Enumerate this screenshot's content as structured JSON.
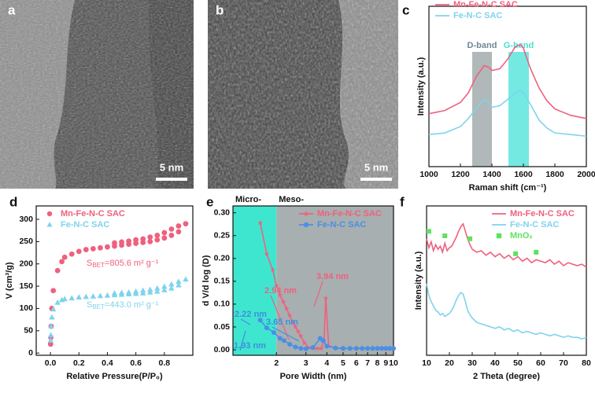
{
  "panels": [
    {
      "label": "a",
      "scale_bar": "5 nm"
    },
    {
      "label": "b",
      "scale_bar": "5 nm"
    }
  ],
  "chart_data": [
    {
      "type": "line",
      "label": "c",
      "xlabel": "Raman shift (cm⁻¹)",
      "ylabel": "Intensity (a.u.)",
      "xlim": [
        1000,
        2000
      ],
      "xticks": [
        1000,
        1200,
        1400,
        1600,
        1800,
        2000
      ],
      "ylim": [
        0,
        1
      ],
      "legend": "upper left",
      "bands": [
        {
          "label": "D-band",
          "range": [
            1275,
            1400
          ],
          "color": "#a3acad",
          "text_color": "#6f8797"
        },
        {
          "label": "G-band",
          "range": [
            1505,
            1635
          ],
          "color": "#5ce5dd",
          "text_color": "#48e0cf"
        }
      ],
      "series": [
        {
          "name": "Mn-Fe-N-C SAC",
          "color": "#f0607e",
          "marker": "none",
          "x": [
            1000,
            1100,
            1200,
            1250,
            1300,
            1350,
            1380,
            1400,
            1450,
            1500,
            1550,
            1580,
            1600,
            1620,
            1650,
            1700,
            1750,
            1800,
            1900,
            2000
          ],
          "values": [
            0.33,
            0.35,
            0.4,
            0.46,
            0.56,
            0.63,
            0.62,
            0.6,
            0.61,
            0.67,
            0.75,
            0.76,
            0.74,
            0.68,
            0.6,
            0.49,
            0.41,
            0.36,
            0.32,
            0.3
          ]
        },
        {
          "name": "Fe-N-C SAC",
          "color": "#7fd3ec",
          "marker": "none",
          "x": [
            1000,
            1100,
            1200,
            1250,
            1300,
            1350,
            1380,
            1400,
            1450,
            1500,
            1550,
            1580,
            1600,
            1650,
            1700,
            1750,
            1800,
            1900,
            2000
          ],
          "values": [
            0.2,
            0.21,
            0.25,
            0.3,
            0.36,
            0.42,
            0.4,
            0.37,
            0.38,
            0.42,
            0.46,
            0.48,
            0.46,
            0.38,
            0.29,
            0.24,
            0.21,
            0.2,
            0.19
          ]
        }
      ]
    },
    {
      "type": "scatter",
      "label": "d",
      "xlabel": "Relative Pressure(P/P₀)",
      "ylabel": "V (cm³/g)",
      "xlim": [
        -0.1,
        1.0
      ],
      "xticks": [
        {
          "value": 0,
          "label": "0.0"
        },
        {
          "value": 0.2,
          "label": "0.2"
        },
        {
          "value": 0.4,
          "label": "0.4"
        },
        {
          "value": 0.6,
          "label": "0.6"
        },
        {
          "value": 0.8,
          "label": "0.8"
        }
      ],
      "ylim": [
        -5,
        330
      ],
      "yticks": [
        0,
        50,
        100,
        150,
        200,
        250,
        300
      ],
      "legend": "upper left",
      "annotations": [
        {
          "main": "S",
          "sub": "BET",
          "rest": "=805.6 m² g⁻¹",
          "color": "#f0607e"
        },
        {
          "main": "S",
          "sub": "BET",
          "rest": "=443.0 m² g⁻¹",
          "color": "#7fd3ec"
        }
      ],
      "series": [
        {
          "name": "Mn-Fe-N-C SAC",
          "color": "#f0607e",
          "marker": "circle",
          "x": [
            0.001,
            0.003,
            0.005,
            0.01,
            0.02,
            0.05,
            0.08,
            0.1,
            0.15,
            0.2,
            0.25,
            0.3,
            0.35,
            0.4,
            0.45,
            0.5,
            0.55,
            0.6,
            0.65,
            0.7,
            0.75,
            0.8,
            0.85,
            0.9,
            0.95,
            0.9,
            0.85,
            0.8,
            0.75,
            0.7,
            0.65,
            0.6,
            0.55,
            0.5,
            0.45
          ],
          "values": [
            20,
            35,
            60,
            100,
            140,
            185,
            205,
            215,
            222,
            228,
            232,
            234,
            236,
            238,
            240,
            242,
            244,
            246,
            248,
            250,
            254,
            258,
            264,
            272,
            290,
            285,
            278,
            270,
            264,
            260,
            256,
            254,
            251,
            249,
            247
          ]
        },
        {
          "name": "Fe-N-C SAC",
          "color": "#7fd3ec",
          "marker": "triangle",
          "x": [
            0.001,
            0.003,
            0.005,
            0.01,
            0.02,
            0.05,
            0.08,
            0.1,
            0.15,
            0.2,
            0.25,
            0.3,
            0.35,
            0.4,
            0.45,
            0.5,
            0.55,
            0.6,
            0.65,
            0.7,
            0.75,
            0.8,
            0.85,
            0.9,
            0.95,
            0.9,
            0.85,
            0.8,
            0.75,
            0.7,
            0.65,
            0.6,
            0.55,
            0.5,
            0.45
          ],
          "values": [
            28,
            40,
            60,
            80,
            98,
            113,
            119,
            121,
            123,
            125,
            126,
            127,
            128,
            129,
            130,
            131,
            132,
            133,
            134,
            136,
            138,
            141,
            145,
            152,
            165,
            160,
            154,
            149,
            145,
            142,
            140,
            138,
            136,
            135,
            134
          ]
        }
      ]
    },
    {
      "type": "line",
      "label": "e",
      "xlabel": "Pore Width (nm)",
      "ylabel": "d V/d log (D)",
      "xlog": true,
      "xlim": [
        1.1,
        10
      ],
      "xticks": [
        2,
        3,
        4,
        5,
        6,
        7,
        8,
        9,
        10
      ],
      "ylim": [
        -0.012,
        0.315
      ],
      "yticks": [
        {
          "value": 0,
          "label": "0.00"
        },
        {
          "value": 0.05,
          "label": "0.05"
        },
        {
          "value": 0.1,
          "label": "0.10"
        },
        {
          "value": 0.15,
          "label": "0.15"
        },
        {
          "value": 0.2,
          "label": "0.20"
        },
        {
          "value": 0.25,
          "label": "0.25"
        },
        {
          "value": 0.3,
          "label": "0.30"
        }
      ],
      "legend": "upper right",
      "bands": [
        {
          "label": "Micro-",
          "range": [
            1.1,
            2
          ],
          "color": "#3fe6cf",
          "text_color": "#111"
        },
        {
          "label": "Meso-",
          "range": [
            2,
            10
          ],
          "color": "#a7afb0",
          "text_color": "#111"
        }
      ],
      "annotations": [
        {
          "text": "2.94 nm",
          "color": "#f0607e"
        },
        {
          "text": "3.94 nm",
          "color": "#f0607e"
        },
        {
          "text": "2.22 nm",
          "color": "#3f8fe0"
        },
        {
          "text": "3.65 nm",
          "color": "#3f8fe0"
        },
        {
          "text": "1.93 nm",
          "color": "#3f8fe0"
        }
      ],
      "series": [
        {
          "name": "Mn-Fe-N-C SAC",
          "color": "#f0607e",
          "marker": "star",
          "x": [
            1.6,
            1.75,
            1.9,
            2.0,
            2.1,
            2.2,
            2.3,
            2.4,
            2.5,
            2.6,
            2.7,
            2.8,
            2.94,
            3.1,
            3.3,
            3.5,
            3.7,
            3.85,
            3.94,
            4.1,
            4.5,
            5,
            5.5,
            6,
            6.5,
            7,
            7.5,
            8,
            8.5,
            9,
            9.5,
            10
          ],
          "values": [
            0.278,
            0.21,
            0.175,
            0.14,
            0.12,
            0.105,
            0.09,
            0.075,
            0.06,
            0.05,
            0.04,
            0.03,
            0.015,
            0.005,
            0.003,
            0.003,
            0.003,
            0.02,
            0.113,
            0.008,
            0.004,
            0.003,
            0.003,
            0.003,
            0.003,
            0.003,
            0.003,
            0.003,
            0.003,
            0.003,
            0.003,
            0.003
          ]
        },
        {
          "name": "Fe-N-C SAC",
          "color": "#4a8fe6",
          "marker": "circle",
          "x": [
            1.6,
            1.75,
            1.93,
            2.1,
            2.22,
            2.4,
            2.6,
            2.8,
            3.0,
            3.3,
            3.65,
            3.8,
            4.0,
            4.5,
            5,
            5.5,
            6,
            6.5,
            7,
            7.5,
            8,
            8.5,
            9,
            9.5,
            10
          ],
          "values": [
            0.065,
            0.048,
            0.038,
            0.025,
            0.02,
            0.012,
            0.006,
            0.003,
            0.002,
            0.005,
            0.025,
            0.02,
            0.008,
            0.004,
            0.003,
            0.003,
            0.003,
            0.003,
            0.003,
            0.003,
            0.003,
            0.003,
            0.003,
            0.003,
            0.003
          ]
        }
      ]
    },
    {
      "type": "line",
      "label": "f",
      "xlabel": "2 Theta (degree)",
      "ylabel": "Intensity (a.u.)",
      "xlim": [
        10,
        80
      ],
      "xticks": [
        10,
        20,
        30,
        40,
        50,
        60,
        70,
        80
      ],
      "ylim": [
        0,
        1
      ],
      "legend": "upper right",
      "series": [
        {
          "name": "Mn-Fe-N-C SAC",
          "color": "#f0607e",
          "marker": "none",
          "x": [
            10,
            11,
            12,
            13,
            14,
            15,
            16,
            17,
            18,
            19,
            20,
            21,
            22,
            23,
            24,
            25,
            26,
            27,
            28,
            29,
            30,
            32,
            34,
            36,
            38,
            40,
            42,
            44,
            46,
            48,
            50,
            52,
            54,
            56,
            58,
            60,
            62,
            64,
            66,
            68,
            70,
            72,
            74,
            76,
            78,
            80
          ],
          "values": [
            0.78,
            0.72,
            0.76,
            0.7,
            0.74,
            0.71,
            0.73,
            0.69,
            0.75,
            0.7,
            0.72,
            0.73,
            0.76,
            0.79,
            0.83,
            0.86,
            0.88,
            0.83,
            0.78,
            0.74,
            0.71,
            0.69,
            0.7,
            0.67,
            0.69,
            0.66,
            0.68,
            0.65,
            0.67,
            0.64,
            0.66,
            0.63,
            0.65,
            0.62,
            0.64,
            0.63,
            0.62,
            0.64,
            0.61,
            0.63,
            0.6,
            0.62,
            0.61,
            0.6,
            0.61,
            0.59
          ]
        },
        {
          "name": "Fe-N-C SAC",
          "color": "#7fd3ec",
          "marker": "none",
          "x": [
            10,
            11,
            12,
            13,
            14,
            15,
            16,
            17,
            18,
            19,
            20,
            21,
            22,
            23,
            24,
            25,
            26,
            27,
            28,
            29,
            30,
            32,
            34,
            36,
            38,
            40,
            42,
            44,
            46,
            48,
            50,
            52,
            54,
            56,
            58,
            60,
            62,
            64,
            66,
            68,
            70,
            72,
            74,
            76,
            78,
            80
          ],
          "values": [
            0.48,
            0.4,
            0.36,
            0.33,
            0.3,
            0.29,
            0.27,
            0.28,
            0.26,
            0.27,
            0.28,
            0.3,
            0.33,
            0.37,
            0.4,
            0.42,
            0.41,
            0.36,
            0.3,
            0.27,
            0.25,
            0.22,
            0.21,
            0.2,
            0.19,
            0.18,
            0.19,
            0.17,
            0.18,
            0.16,
            0.17,
            0.15,
            0.16,
            0.15,
            0.14,
            0.15,
            0.14,
            0.13,
            0.14,
            0.13,
            0.12,
            0.13,
            0.12,
            0.12,
            0.11,
            0.12
          ]
        },
        {
          "name": "MnOₓ",
          "color": "#5fe25f",
          "marker": "square",
          "line": false,
          "x": [
            11,
            18,
            29,
            49,
            58
          ],
          "values": [
            0.83,
            0.8,
            0.78,
            0.68,
            0.69
          ]
        }
      ]
    }
  ]
}
